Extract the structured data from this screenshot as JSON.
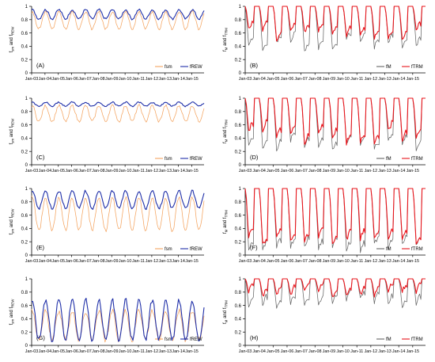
{
  "figure": {
    "colors": {
      "fsm": "#f4a460",
      "fREW": "#1f2fa8",
      "fM": "#666666",
      "fTRM": "#e8141b"
    },
    "x_ticks": [
      "Jan-03",
      "Jan-04",
      "Jan-05",
      "Jan-06",
      "Jan-07",
      "Jan-08",
      "Jan-09",
      "Jan-10",
      "Jan-11",
      "Jan-12",
      "Jan-13",
      "Jan-14",
      "Jan-15"
    ],
    "y_ticks": [
      "0",
      "0.2",
      "0.4",
      "0.6",
      "0.8",
      "1"
    ]
  },
  "chart_data": [
    {
      "panel": "(A)",
      "type": "line",
      "ylabel_main": "f",
      "ylabel_sub1": "sm",
      "ylabel_mid": " and f",
      "ylabel_sub2": "REW",
      "ylim": [
        0,
        1
      ],
      "xlim": [
        "Jan-03",
        "Dec-15"
      ],
      "series": [
        {
          "name": "fsm",
          "color": "#f4a460",
          "base": 0.79,
          "amp": 0.13,
          "noise": 0.02
        },
        {
          "name": "fREW",
          "color": "#1f2fa8",
          "base": 0.88,
          "amp": 0.07,
          "noise": 0.015
        }
      ]
    },
    {
      "panel": "(B)",
      "type": "line",
      "ylabel_main": "f",
      "ylabel_sub1": "M",
      "ylabel_mid": " and f",
      "ylabel_sub2": "TRM",
      "ylim": [
        0,
        1
      ],
      "xlim": [
        "Jan-03",
        "Dec-15"
      ],
      "series": [
        {
          "name": "fM",
          "color": "#666666",
          "pattern": "recover",
          "floor": 0.4,
          "spread": 0.1
        },
        {
          "name": "fTRM",
          "color": "#e8141b",
          "pattern": "recover",
          "floor": 0.58,
          "spread": 0.08
        }
      ]
    },
    {
      "panel": "(C)",
      "type": "line",
      "ylabel_main": "f",
      "ylabel_sub1": "sm",
      "ylabel_mid": " and f",
      "ylabel_sub2": "REW",
      "ylim": [
        0,
        1
      ],
      "xlim": [
        "Jan-03",
        "Dec-15"
      ],
      "series": [
        {
          "name": "fsm",
          "color": "#f4a460",
          "base": 0.77,
          "amp": 0.12,
          "noise": 0.02
        },
        {
          "name": "fREW",
          "color": "#1f2fa8",
          "base": 0.91,
          "amp": 0.03,
          "noise": 0.01
        }
      ]
    },
    {
      "panel": "(D)",
      "type": "line",
      "ylabel_main": "f",
      "ylabel_sub1": "M",
      "ylabel_mid": " and f",
      "ylabel_sub2": "TRM",
      "ylim": [
        0,
        1
      ],
      "xlim": [
        "Jan-03",
        "Dec-15"
      ],
      "series": [
        {
          "name": "fM",
          "color": "#666666",
          "pattern": "recover",
          "floor": 0.3,
          "spread": 0.1
        },
        {
          "name": "fTRM",
          "color": "#e8141b",
          "pattern": "recover",
          "floor": 0.42,
          "spread": 0.1
        }
      ]
    },
    {
      "panel": "(E)",
      "type": "line",
      "ylabel_main": "f",
      "ylabel_sub1": "sm",
      "ylabel_mid": " and f",
      "ylabel_sub2": "REW",
      "ylim": [
        0,
        1
      ],
      "xlim": [
        "Jan-03",
        "Dec-15"
      ],
      "series": [
        {
          "name": "fsm",
          "color": "#f4a460",
          "base": 0.62,
          "amp": 0.25,
          "noise": 0.03
        },
        {
          "name": "fREW",
          "color": "#1f2fa8",
          "base": 0.83,
          "amp": 0.13,
          "noise": 0.02
        }
      ]
    },
    {
      "panel": "(F)",
      "type": "line",
      "ylabel_main": "f",
      "ylabel_sub1": "M",
      "ylabel_mid": " and f",
      "ylabel_sub2": "TRM",
      "ylim": [
        0,
        1
      ],
      "xlim": [
        "Jan-03",
        "Dec-15"
      ],
      "series": [
        {
          "name": "fM",
          "color": "#666666",
          "pattern": "recover",
          "floor": 0.1,
          "spread": 0.06
        },
        {
          "name": "fTRM",
          "color": "#e8141b",
          "pattern": "recover",
          "floor": 0.2,
          "spread": 0.08
        }
      ]
    },
    {
      "panel": "(G)",
      "type": "line",
      "ylabel_main": "f",
      "ylabel_sub1": "sm",
      "ylabel_mid": " and f",
      "ylabel_sub2": "REW",
      "ylim": [
        0,
        1
      ],
      "xlim": [
        "Jan-03",
        "Dec-15"
      ],
      "series": [
        {
          "name": "fsm",
          "color": "#f4a460",
          "base": 0.3,
          "amp": 0.22,
          "noise": 0.04
        },
        {
          "name": "fREW",
          "color": "#1f2fa8",
          "base": 0.38,
          "amp": 0.3,
          "noise": 0.04
        }
      ]
    },
    {
      "panel": "(H)",
      "type": "line",
      "ylabel_main": "f",
      "ylabel_sub1": "M",
      "ylabel_mid": " and f",
      "ylabel_sub2": "TRM",
      "ylim": [
        0,
        1
      ],
      "xlim": [
        "Jan-03",
        "Dec-15"
      ],
      "series": [
        {
          "name": "fM",
          "color": "#666666",
          "pattern": "recover",
          "floor": 0.62,
          "spread": 0.08
        },
        {
          "name": "fTRM",
          "color": "#e8141b",
          "pattern": "recover",
          "floor": 0.76,
          "spread": 0.06
        }
      ]
    }
  ]
}
